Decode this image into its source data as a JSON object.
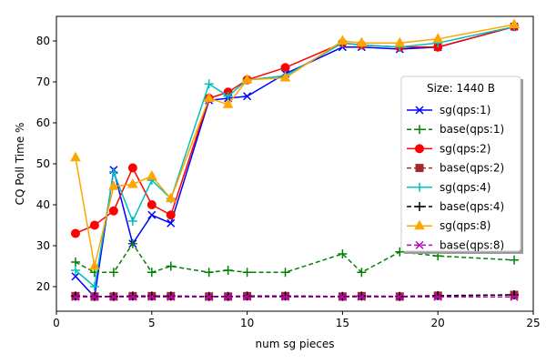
{
  "chart_data": {
    "type": "line",
    "title": "",
    "xlabel": "num sg pieces",
    "ylabel": "CQ Poll Time %",
    "xlim": [
      0,
      25
    ],
    "ylim": [
      14,
      86
    ],
    "xticks": [
      0,
      5,
      10,
      15,
      20,
      25
    ],
    "yticks": [
      20,
      30,
      40,
      50,
      60,
      70,
      80
    ],
    "grid": false,
    "legend": {
      "title": "Size: 1440 B",
      "placement": "center-right"
    },
    "x": [
      1,
      2,
      3,
      4,
      5,
      6,
      8,
      9,
      10,
      12,
      15,
      16,
      18,
      20,
      24
    ],
    "series": [
      {
        "name": "sg(qps:1)",
        "color": "#0000ff",
        "line": "solid",
        "marker": "x",
        "values": [
          22.5,
          17.5,
          48.5,
          30.5,
          37.5,
          35.5,
          65.5,
          66.0,
          66.5,
          72.0,
          78.5,
          78.5,
          78.0,
          78.5,
          83.5
        ]
      },
      {
        "name": "base(qps:1)",
        "color": "#008000",
        "line": "dashed",
        "marker": "plus",
        "values": [
          26.0,
          23.5,
          23.5,
          30.5,
          23.5,
          25.0,
          23.5,
          24.0,
          23.5,
          23.5,
          28.0,
          23.5,
          28.5,
          27.5,
          26.5
        ]
      },
      {
        "name": "sg(qps:2)",
        "color": "#ff0000",
        "line": "solid",
        "marker": "circle",
        "values": [
          33.0,
          35.0,
          38.5,
          49.0,
          40.0,
          37.5,
          66.0,
          67.5,
          70.5,
          73.5,
          79.5,
          79.0,
          78.5,
          78.5,
          83.5
        ]
      },
      {
        "name": "base(qps:2)",
        "color": "#a52a2a",
        "line": "dashed",
        "marker": "square",
        "values": [
          17.7,
          17.6,
          17.6,
          17.7,
          17.7,
          17.7,
          17.6,
          17.6,
          17.7,
          17.7,
          17.6,
          17.7,
          17.6,
          17.8,
          18.0
        ]
      },
      {
        "name": "sg(qps:4)",
        "color": "#00bfbf",
        "line": "solid",
        "marker": "plus",
        "values": [
          24.0,
          20.0,
          48.0,
          36.0,
          46.0,
          41.5,
          69.5,
          66.5,
          70.5,
          71.5,
          79.5,
          79.0,
          78.5,
          79.5,
          83.5
        ]
      },
      {
        "name": "base(qps:4)",
        "color": "#000000",
        "line": "dashed",
        "marker": "plus",
        "values": [
          17.7,
          17.6,
          17.6,
          17.7,
          17.7,
          17.7,
          17.6,
          17.6,
          17.7,
          17.7,
          17.6,
          17.7,
          17.6,
          17.8,
          18.0
        ]
      },
      {
        "name": "sg(qps:8)",
        "color": "#ffa500",
        "line": "solid",
        "marker": "triangle",
        "values": [
          51.5,
          25.0,
          44.5,
          45.0,
          47.0,
          41.5,
          66.0,
          64.5,
          70.5,
          71.0,
          80.0,
          79.5,
          79.5,
          80.5,
          84.0
        ]
      },
      {
        "name": "base(qps:8)",
        "color": "#bf00bf",
        "line": "dashed",
        "marker": "x",
        "values": [
          17.5,
          17.5,
          17.5,
          17.5,
          17.5,
          17.5,
          17.5,
          17.5,
          17.5,
          17.5,
          17.5,
          17.5,
          17.5,
          17.5,
          17.5
        ]
      }
    ]
  }
}
